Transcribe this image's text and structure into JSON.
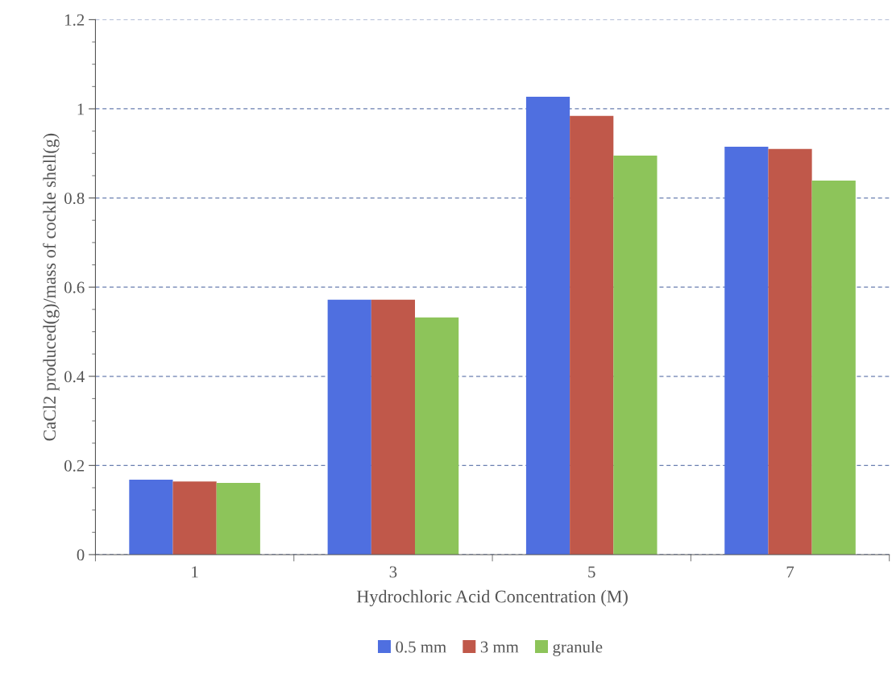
{
  "chart_data": {
    "type": "bar",
    "xlabel": "Hydrochloric Acid Concentration (M)",
    "ylabel": "CaCl2 produced(g)/mass of cockle shell(g)",
    "categories": [
      "1",
      "3",
      "5",
      "7"
    ],
    "series": [
      {
        "name": "0.5 mm",
        "color": "#4f6fe0",
        "values": [
          0.168,
          0.572,
          1.027,
          0.915
        ]
      },
      {
        "name": "3 mm",
        "color": "#c0584a",
        "values": [
          0.164,
          0.572,
          0.984,
          0.91
        ]
      },
      {
        "name": "granule",
        "color": "#8dc45a",
        "values": [
          0.161,
          0.532,
          0.895,
          0.839
        ]
      }
    ],
    "ylim": [
      0,
      1.2
    ],
    "yticks": [
      0,
      0.2,
      0.4,
      0.6,
      0.8,
      1,
      1.2
    ],
    "grid": "y",
    "legend": "bottom"
  }
}
